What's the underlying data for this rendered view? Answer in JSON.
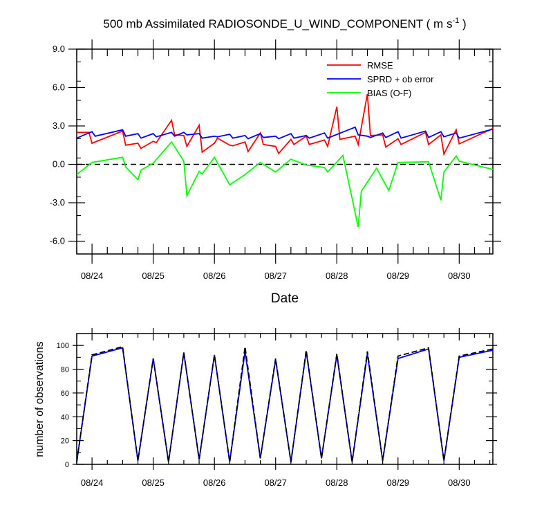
{
  "chart_data": [
    {
      "type": "line",
      "title_main": "500 mb Assimilated RADIOSONDE_U_WIND_COMPONENT ( m s",
      "title_sup": "-1",
      "title_end": " )",
      "xlabel": "Date",
      "ylabel": "",
      "xlim": [
        0,
        34
      ],
      "ylim": [
        -7,
        9
      ],
      "yticks": [
        -6,
        -3,
        0,
        3,
        6,
        9
      ],
      "ytick_labels": [
        "-6.0",
        "-3.0",
        "0.0",
        "3.0",
        "6.0",
        "9.0"
      ],
      "xticks": [
        1.25,
        6.25,
        11.25,
        16.25,
        21.25,
        26.25,
        31.25
      ],
      "xtick_labels": [
        "08/24",
        "08/25",
        "08/26",
        "08/27",
        "08/28",
        "08/29",
        "08/30"
      ],
      "zero_line": true,
      "legend": [
        "RMSE",
        "SPRD + ob error",
        "BIAS (O-F)"
      ],
      "series": [
        {
          "name": "RMSE",
          "color": "#ff0000",
          "x": [
            0,
            1,
            1.25,
            3.75,
            4,
            5,
            5.25,
            6.25,
            6.5,
            7.75,
            8,
            8.75,
            9,
            10,
            10.25,
            11.25,
            11.5,
            12.5,
            12.75,
            13.75,
            14,
            15,
            15.25,
            16.25,
            16.5,
            17.5,
            17.75,
            18.75,
            19,
            20.25,
            20.5,
            21.25,
            21.5,
            22.75,
            23,
            23.75,
            24,
            25,
            25.25,
            26.25,
            26.5,
            28.5,
            28.75,
            29.75,
            30,
            31,
            31.25,
            34
          ],
          "y": [
            2.5,
            2.5,
            1.65,
            2.6,
            1.5,
            1.65,
            1.25,
            1.8,
            1.7,
            3.45,
            2.3,
            2.25,
            1.4,
            3.05,
            0.95,
            1.65,
            2.05,
            1.5,
            1.45,
            1.75,
            1.0,
            2.45,
            1.55,
            1.4,
            0.85,
            1.95,
            1.55,
            2.2,
            1.55,
            1.9,
            1.4,
            4.5,
            1.95,
            2.2,
            1.55,
            5.5,
            2.25,
            2.3,
            1.35,
            2.0,
            1.55,
            2.5,
            1.55,
            2.3,
            0.8,
            2.7,
            1.6,
            2.8
          ]
        },
        {
          "name": "SPRD + ob error",
          "color": "#0000ff",
          "x": [
            0,
            1.25,
            1.5,
            3.75,
            4,
            5,
            5.25,
            6.25,
            6.5,
            7.75,
            8,
            8.75,
            9,
            10,
            10.25,
            11.25,
            11.5,
            12.5,
            12.75,
            13.75,
            14,
            15,
            15.25,
            16.25,
            16.5,
            17.5,
            17.75,
            18.75,
            19,
            20.25,
            20.5,
            22.75,
            23,
            23.75,
            24,
            25,
            25.25,
            26.25,
            26.5,
            28.5,
            28.75,
            29.75,
            30,
            31,
            31.25,
            34
          ],
          "y": [
            2.05,
            2.55,
            2.2,
            2.7,
            2.2,
            2.4,
            2.05,
            2.4,
            2.15,
            2.5,
            2.2,
            2.5,
            2.3,
            2.4,
            2.05,
            2.2,
            2.15,
            2.35,
            2.05,
            2.25,
            2.0,
            2.4,
            2.1,
            2.2,
            2.0,
            2.4,
            2.05,
            2.25,
            2.05,
            2.45,
            2.05,
            2.9,
            2.3,
            2.2,
            2.1,
            2.45,
            2.1,
            2.55,
            2.05,
            2.6,
            2.1,
            2.55,
            2.15,
            2.45,
            2.05,
            2.75
          ]
        },
        {
          "name": "BIAS (O-F)",
          "color": "#00ff00",
          "x": [
            0,
            1.25,
            3.75,
            4,
            5,
            5.25,
            6.25,
            7.75,
            8.75,
            9,
            10,
            10.25,
            11.25,
            12.5,
            13.75,
            15,
            16.25,
            17.5,
            18.75,
            20.25,
            20.5,
            21.75,
            23,
            23.25,
            24.5,
            25.5,
            26.25,
            28.75,
            29.75,
            30,
            31,
            31.25,
            34
          ],
          "y": [
            -0.8,
            0.15,
            0.55,
            -0.2,
            -1.2,
            -0.45,
            0.1,
            1.75,
            0.25,
            -2.45,
            -0.55,
            -0.75,
            0.55,
            -1.6,
            -0.8,
            0.15,
            -0.6,
            0.4,
            -0.05,
            -0.25,
            -0.6,
            0.7,
            -4.9,
            -2.1,
            -0.3,
            -2.05,
            0.15,
            0.2,
            -2.8,
            -0.6,
            0.65,
            0.25,
            -0.4
          ]
        }
      ]
    },
    {
      "type": "line",
      "title": "",
      "xlabel": "",
      "ylabel": "number of observations",
      "xlim": [
        0,
        34
      ],
      "ylim": [
        0,
        110
      ],
      "yticks": [
        0,
        20,
        40,
        60,
        80,
        100
      ],
      "ytick_labels": [
        "0",
        "20",
        "40",
        "60",
        "80",
        "100"
      ],
      "xticks": [
        1.25,
        6.25,
        11.25,
        16.25,
        21.25,
        26.25,
        31.25
      ],
      "xtick_labels": [
        "08/24",
        "08/25",
        "08/26",
        "08/27",
        "08/28",
        "08/29",
        "08/30"
      ],
      "series": [
        {
          "name": "observations",
          "color": "#0000ff",
          "x": [
            0,
            1.25,
            3.75,
            5,
            6.25,
            7.5,
            8.75,
            10,
            11.25,
            12.5,
            13.75,
            15,
            16.25,
            17.5,
            18.75,
            20,
            21.25,
            22.5,
            23.75,
            25,
            26.25,
            28.75,
            30,
            31.25,
            34
          ],
          "y": [
            2,
            91,
            98,
            3,
            89,
            2,
            94,
            4,
            92,
            2,
            95,
            5,
            88,
            2,
            95,
            5,
            92,
            2,
            93,
            3,
            89,
            97,
            3,
            90,
            96
          ]
        },
        {
          "name": "observations (dashed)",
          "color": "#000000",
          "dashed": true,
          "x": [
            0,
            1.25,
            3.75,
            5,
            6.25,
            7.5,
            8.75,
            10,
            11.25,
            12.5,
            13.75,
            15,
            16.25,
            17.5,
            18.75,
            20,
            21.25,
            22.5,
            23.75,
            25,
            26.25,
            28.75,
            30,
            31.25,
            34
          ],
          "y": [
            2,
            92,
            99,
            3,
            89,
            2,
            94,
            4,
            92,
            2,
            99,
            5,
            89,
            2,
            96,
            5,
            93,
            2,
            95,
            3,
            91,
            98,
            3,
            91,
            97
          ]
        }
      ]
    }
  ]
}
